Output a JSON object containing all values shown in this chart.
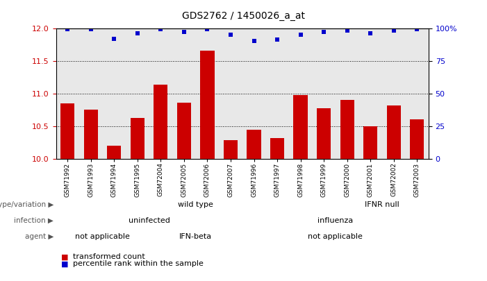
{
  "title": "GDS2762 / 1450026_a_at",
  "samples": [
    "GSM71992",
    "GSM71993",
    "GSM71994",
    "GSM71995",
    "GSM72004",
    "GSM72005",
    "GSM72006",
    "GSM72007",
    "GSM71996",
    "GSM71997",
    "GSM71998",
    "GSM71999",
    "GSM72000",
    "GSM72001",
    "GSM72002",
    "GSM72003"
  ],
  "bar_values": [
    10.85,
    10.75,
    10.2,
    10.62,
    11.13,
    10.86,
    11.65,
    10.28,
    10.44,
    10.32,
    10.97,
    10.77,
    10.9,
    10.5,
    10.82,
    10.6
  ],
  "dot_values": [
    99,
    99,
    92,
    96,
    99,
    97,
    99,
    95,
    90,
    91,
    95,
    97,
    98,
    96,
    98,
    99
  ],
  "bar_color": "#cc0000",
  "dot_color": "#0000cc",
  "ylim_left": [
    10,
    12
  ],
  "ylim_right": [
    0,
    100
  ],
  "yticks_left": [
    10,
    10.5,
    11,
    11.5,
    12
  ],
  "yticks_right": [
    0,
    25,
    50,
    75,
    100
  ],
  "grid_lines": [
    10.5,
    11.0,
    11.5
  ],
  "background_color": "#ffffff",
  "plot_bg": "#e8e8e8",
  "genotype_segments": [
    {
      "start": 0,
      "end": 12,
      "label": "wild type",
      "color": "#bbffbb"
    },
    {
      "start": 12,
      "end": 16,
      "label": "IFNR null",
      "color": "#44cc44"
    }
  ],
  "infection_segments": [
    {
      "start": 0,
      "end": 8,
      "label": "uninfected",
      "color": "#aaaaee"
    },
    {
      "start": 8,
      "end": 16,
      "label": "influenza",
      "color": "#7777cc"
    }
  ],
  "agent_segments": [
    {
      "start": 0,
      "end": 4,
      "label": "not applicable",
      "color": "#ffcccc"
    },
    {
      "start": 4,
      "end": 8,
      "label": "IFN-beta",
      "color": "#dd7777"
    },
    {
      "start": 8,
      "end": 16,
      "label": "not applicable",
      "color": "#ffcccc"
    }
  ],
  "row_labels": [
    "genotype/variation",
    "infection",
    "agent"
  ],
  "legend_bar_label": "transformed count",
  "legend_dot_label": "percentile rank within the sample"
}
